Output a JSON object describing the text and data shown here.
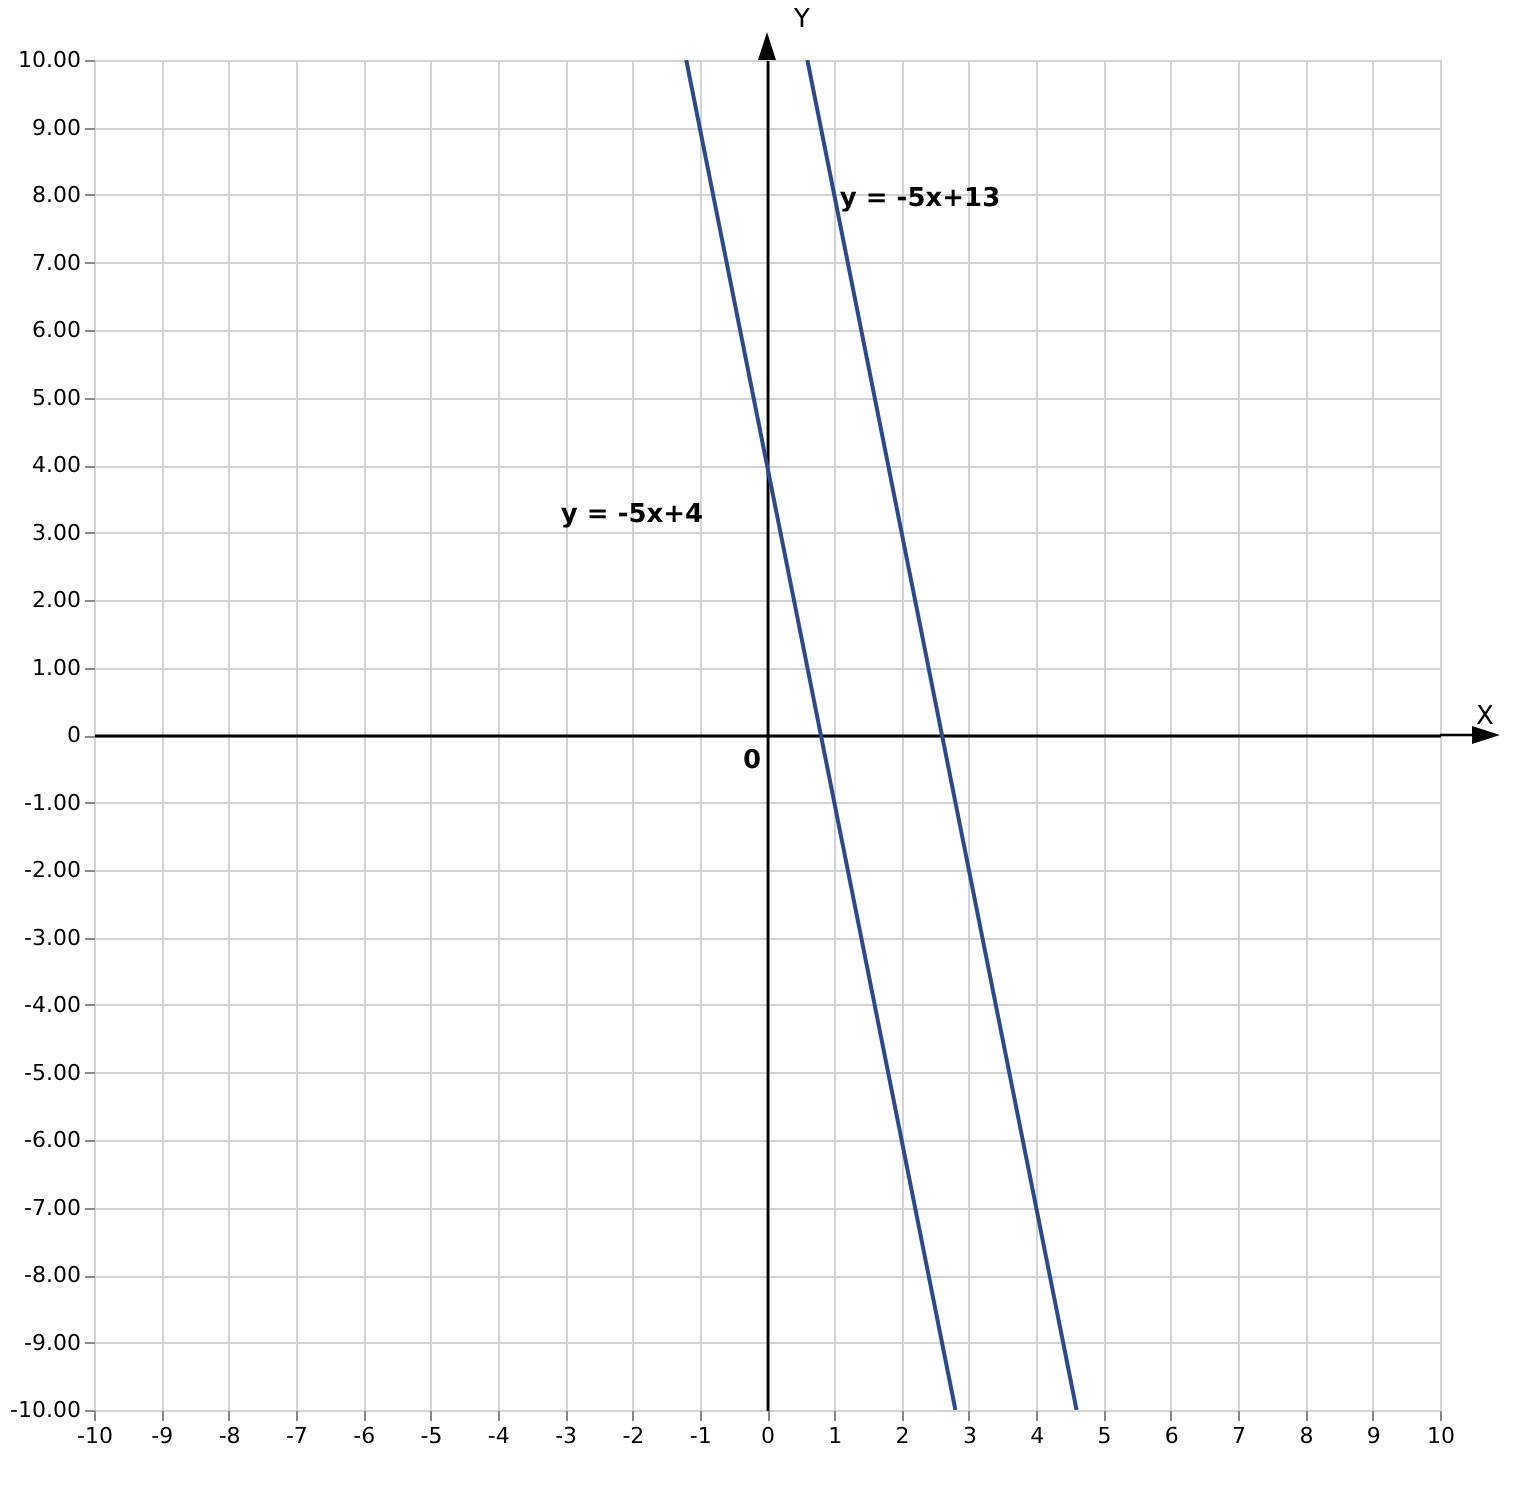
{
  "chart_data": {
    "type": "line",
    "xlabel": "X",
    "ylabel": "Y",
    "xlim": [
      -10,
      10
    ],
    "ylim": [
      -10,
      10
    ],
    "xticks": [
      -10,
      -9,
      -8,
      -7,
      -6,
      -5,
      -4,
      -3,
      -2,
      -1,
      0,
      1,
      2,
      3,
      4,
      5,
      6,
      7,
      8,
      9,
      10
    ],
    "yticks": [
      {
        "value": -10,
        "label": "-10.00"
      },
      {
        "value": -9,
        "label": "-9.00"
      },
      {
        "value": -8,
        "label": "-8.00"
      },
      {
        "value": -7,
        "label": "-7.00"
      },
      {
        "value": -6,
        "label": "-6.00"
      },
      {
        "value": -5,
        "label": "-5.00"
      },
      {
        "value": -4,
        "label": "-4.00"
      },
      {
        "value": -3,
        "label": "-3.00"
      },
      {
        "value": -2,
        "label": "-2.00"
      },
      {
        "value": -1,
        "label": "-1.00"
      },
      {
        "value": 0,
        "label": "0"
      },
      {
        "value": 1,
        "label": "1.00"
      },
      {
        "value": 2,
        "label": "2.00"
      },
      {
        "value": 3,
        "label": "3.00"
      },
      {
        "value": 4,
        "label": "4.00"
      },
      {
        "value": 5,
        "label": "5.00"
      },
      {
        "value": 6,
        "label": "6.00"
      },
      {
        "value": 7,
        "label": "7.00"
      },
      {
        "value": 8,
        "label": "8.00"
      },
      {
        "value": 9,
        "label": "9.00"
      },
      {
        "value": 10,
        "label": "10.00"
      }
    ],
    "grid": true,
    "series": [
      {
        "name": "y = -5x+4",
        "color": "#2b4a8e",
        "x": [
          -1.2,
          2.8
        ],
        "values": [
          10,
          -10
        ]
      },
      {
        "name": "y = -5x+13",
        "color": "#2b4a8e",
        "x": [
          0.6,
          4.6
        ],
        "values": [
          10,
          -10
        ]
      }
    ],
    "annotations": [
      "0"
    ]
  }
}
